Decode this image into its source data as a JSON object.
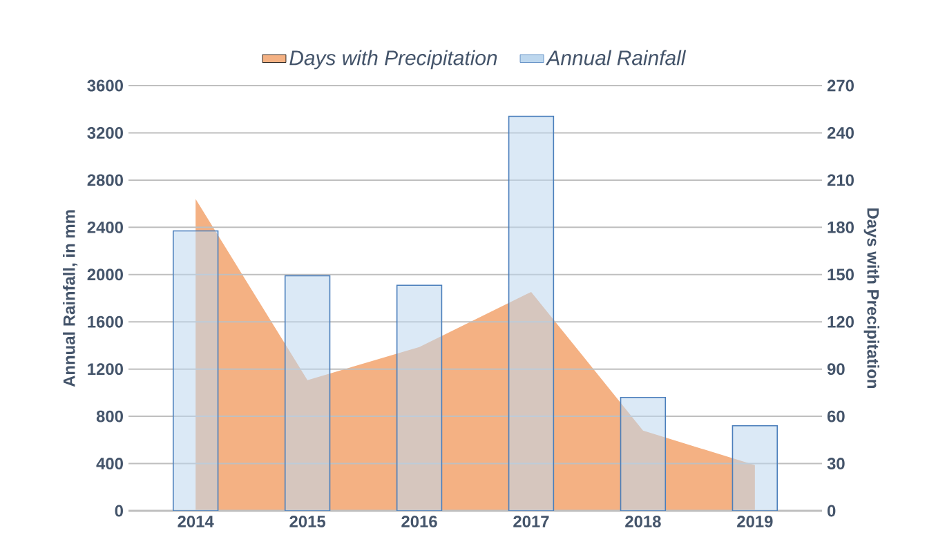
{
  "chart_data": {
    "type": "bar",
    "categories": [
      "2014",
      "2015",
      "2016",
      "2017",
      "2018",
      "2019"
    ],
    "series": [
      {
        "name": "Days with Precipitation",
        "type": "area",
        "axis": "y2",
        "color": "#f4b183",
        "values": [
          198,
          83,
          104,
          139,
          51,
          29
        ]
      },
      {
        "name": "Annual Rainfall",
        "color": "#bdd7ee",
        "values": [
          2370,
          1990,
          1910,
          3340,
          960,
          720
        ]
      }
    ],
    "ylabel": "Annual Rainfall, in mm",
    "y2label": "Days with Precipitation",
    "ylim": [
      0,
      3600
    ],
    "yticks": [
      0,
      400,
      800,
      1200,
      1600,
      2000,
      2400,
      2800,
      3200,
      3600
    ],
    "y2lim": [
      0,
      270
    ],
    "y2ticks": [
      0,
      30,
      60,
      90,
      120,
      150,
      180,
      210,
      240,
      270
    ],
    "grid": "y",
    "legend": "top"
  }
}
